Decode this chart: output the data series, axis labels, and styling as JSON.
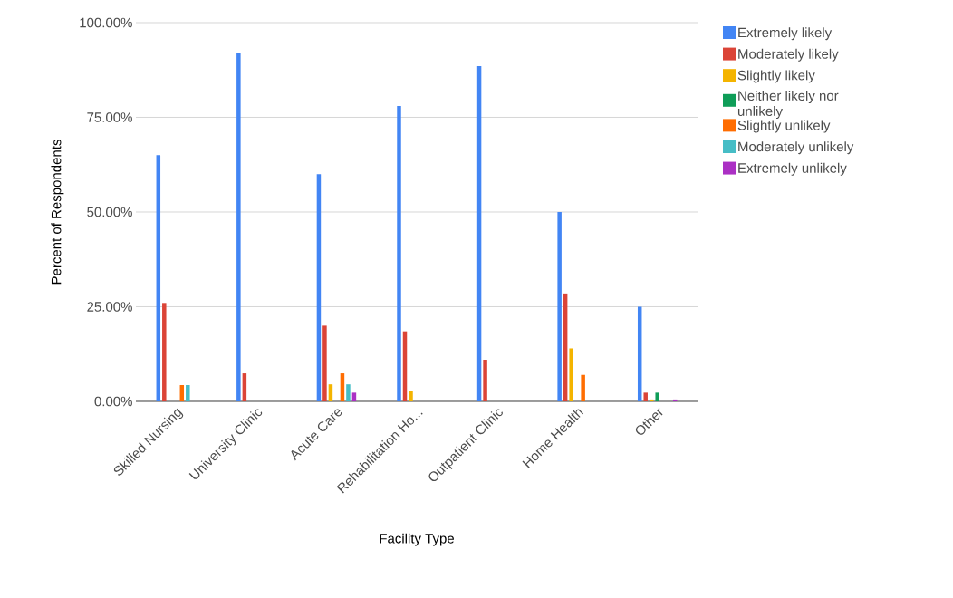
{
  "chart_data": {
    "type": "bar",
    "xlabel": "Facility Type",
    "ylabel": "Percent of Respondents",
    "categories": [
      "Skilled Nursing",
      "University Clinic",
      "Acute Care",
      "Rehabilitation Ho...",
      "Outpatient Clinic",
      "Home Health",
      "Other"
    ],
    "series": [
      {
        "name": "Extremely likely",
        "color": "#4285f4",
        "values": [
          65,
          92,
          60,
          78,
          88.5,
          50,
          25
        ]
      },
      {
        "name": "Moderately likely",
        "color": "#db4437",
        "values": [
          26,
          7.4,
          20,
          18.5,
          11,
          28.5,
          2.3
        ]
      },
      {
        "name": "Slightly likely",
        "color": "#f4b400",
        "values": [
          0,
          0,
          4.5,
          2.8,
          0,
          14,
          0.5
        ]
      },
      {
        "name": "Neither likely nor unlikely",
        "color": "#0f9d58",
        "values": [
          0,
          0,
          0,
          0,
          0,
          0,
          2.3
        ]
      },
      {
        "name": "Slightly unlikely",
        "color": "#ff6d01",
        "values": [
          4.3,
          0,
          7.4,
          0,
          0,
          7,
          0
        ]
      },
      {
        "name": "Moderately unlikely",
        "color": "#46bdc6",
        "values": [
          4.3,
          0,
          4.5,
          0,
          0,
          0,
          0
        ]
      },
      {
        "name": "Extremely unlikely",
        "color": "#ab30c4",
        "values": [
          0,
          0,
          2.3,
          0,
          0,
          0,
          0.5
        ]
      }
    ],
    "ylim": [
      0,
      100
    ],
    "yticks": [
      {
        "value": 0,
        "label": "0.00%"
      },
      {
        "value": 25,
        "label": "25.00%"
      },
      {
        "value": 50,
        "label": "50.00%"
      },
      {
        "value": 75,
        "label": "75.00%"
      },
      {
        "value": 100,
        "label": "100.00%"
      }
    ],
    "grid": "y",
    "legend": "right"
  }
}
